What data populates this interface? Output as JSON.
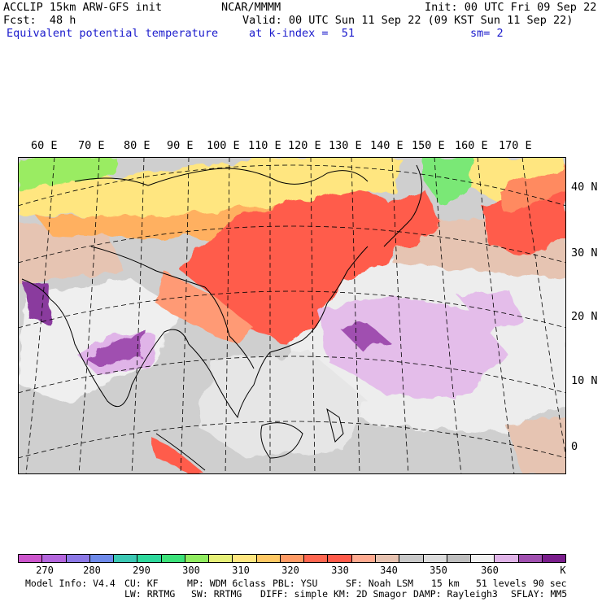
{
  "header": {
    "model": "ACCLIP 15km ARW-GFS init",
    "org": "NCAR/MMMM",
    "init": "Init: 00 UTC Fri 09 Sep 22",
    "fcst": "Fcst:  48 h",
    "valid": "Valid: 00 UTC Sun 11 Sep 22 (09 KST Sun 11 Sep 22)",
    "field": "Equivalent potential temperature",
    "level": "at k-index =  51",
    "smoothing": "sm= 2"
  },
  "map": {
    "lon_labels": [
      "60 E",
      "70 E",
      "80 E",
      "90 E",
      "100 E",
      "110 E",
      "120 E",
      "130 E",
      "140 E",
      "150 E",
      "160 E",
      "170 E"
    ],
    "lat_labels": [
      "40 N",
      "30 N",
      "20 N",
      "10 N",
      "0"
    ]
  },
  "colorbar": {
    "colors": [
      "#cc55cc",
      "#b466dd",
      "#8c78e6",
      "#6e8aea",
      "#3cc8b4",
      "#2ed89c",
      "#3ce27a",
      "#90ec60",
      "#e6f078",
      "#ffe680",
      "#ffc864",
      "#ff9a64",
      "#ff6650",
      "#ff5a4a",
      "#ffaa90",
      "#e6c2b0",
      "#c8c8c8",
      "#dcdcdc",
      "#bebebe",
      "#f0f0f0",
      "#e0b4e8",
      "#a050b0",
      "#7a1e8c"
    ],
    "ticks": [
      "270",
      "280",
      "290",
      "300",
      "310",
      "320",
      "330",
      "340",
      "350",
      "360"
    ],
    "unit": "K"
  },
  "footer": {
    "line1": [
      "Model Info: V4.4",
      "CU: KF",
      "MP: WDM 6class",
      "PBL: YSU",
      "SF: Noah LSM",
      "15 km",
      "51 levels",
      "90 sec"
    ],
    "line2": [
      "LW: RRTMG",
      "SW: RRTMG",
      "DIFF: simple",
      "KM: 2D Smagor",
      "DAMP: Rayleigh3",
      "SFLAY: MM5"
    ]
  }
}
